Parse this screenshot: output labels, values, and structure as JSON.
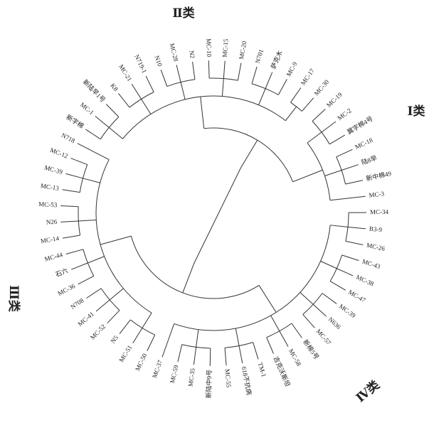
{
  "leaves": [
    "MC-39",
    "MC-12",
    "N718",
    "新字棉",
    "MC-1",
    "新陆早1号",
    "K8",
    "MC-21",
    "N719-1",
    "N10",
    "MC-28",
    "N2",
    "MC-10",
    "MC-15",
    "MC-20",
    "N701",
    "萨克木",
    "MC-9",
    "MC-17",
    "MC-30",
    "MC-19",
    "MC-2",
    "冀字棉4号",
    "MC-18",
    "陆8早",
    "新中棉49",
    "MC-3",
    "MC-34",
    "B3-9",
    "MC-26",
    "MC-43",
    "MC-38",
    "MC-47",
    "MC-39",
    "N636",
    "MC-57",
    "新棉5号",
    "MC-58",
    "吉克沃斯坦",
    "TM-1",
    "618不抗病",
    "MC-55",
    "新陆中9号",
    "MC-35",
    "MC-59",
    "MC-37",
    "MC-50",
    "MC-51",
    "N5",
    "MC-52",
    "MC-41",
    "N708",
    "MC-36",
    "石六",
    "MC-44",
    "MC-14",
    "N26",
    "MC-53",
    "MC-13"
  ],
  "classes": [
    "Ⅰ类",
    "Ⅱ类",
    "Ⅲ类",
    "Ⅳ类"
  ]
}
